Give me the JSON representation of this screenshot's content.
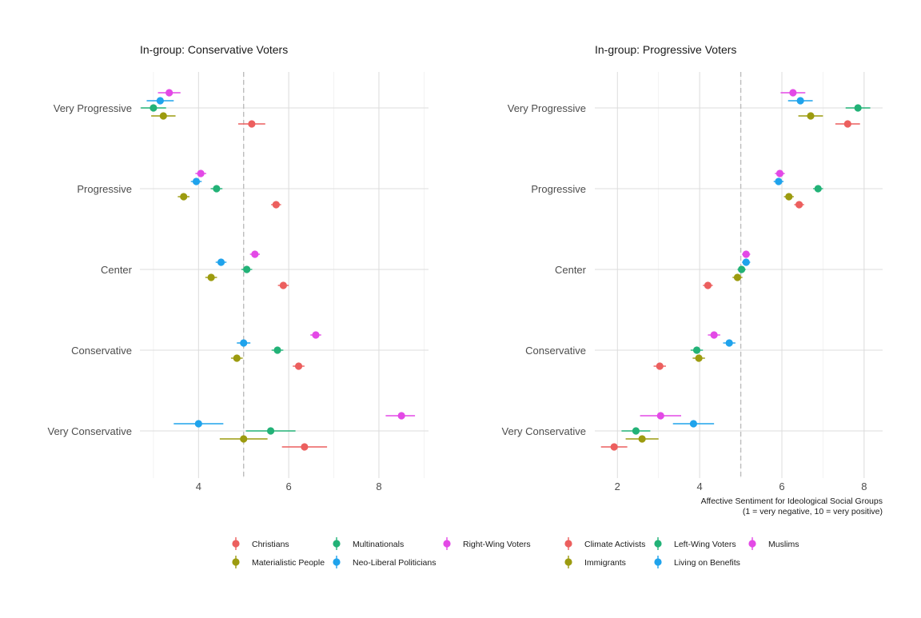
{
  "chart_data": [
    {
      "type": "scatter",
      "subtype": "dot-and-errorbar (point estimates with confidence intervals)",
      "title": "In-group: Conservative Voters",
      "xlabel": "",
      "ylabel": "",
      "xlim": [
        2.7,
        9.1
      ],
      "x_ticks": [
        4,
        6,
        8
      ],
      "reference_line_x": 5,
      "grid": true,
      "categories": [
        "Very Progressive",
        "Progressive",
        "Center",
        "Conservative",
        "Very Conservative"
      ],
      "series": [
        {
          "name": "Right-Wing Voters",
          "color": "#E349E6",
          "values": [
            3.35,
            4.05,
            5.25,
            6.6,
            8.5
          ],
          "ci": [
            [
              3.1,
              3.6
            ],
            [
              3.93,
              4.17
            ],
            [
              5.14,
              5.36
            ],
            [
              6.48,
              6.72
            ],
            [
              8.15,
              8.8
            ]
          ]
        },
        {
          "name": "Neo-Liberal Politicians",
          "color": "#1FA3EC",
          "values": [
            3.15,
            3.95,
            4.5,
            5.0,
            4.0
          ],
          "ci": [
            [
              2.85,
              3.45
            ],
            [
              3.83,
              4.07
            ],
            [
              4.38,
              4.62
            ],
            [
              4.85,
              5.15
            ],
            [
              3.45,
              4.55
            ]
          ]
        },
        {
          "name": "Multinationals",
          "color": "#22B277",
          "values": [
            3.0,
            4.4,
            5.07,
            5.75,
            5.6
          ],
          "ci": [
            [
              2.72,
              3.28
            ],
            [
              4.27,
              4.53
            ],
            [
              4.95,
              5.19
            ],
            [
              5.62,
              5.88
            ],
            [
              5.05,
              6.15
            ]
          ]
        },
        {
          "name": "Materialistic People",
          "color": "#9C9B0F",
          "values": [
            3.22,
            3.67,
            4.28,
            4.85,
            5.0
          ],
          "ci": [
            [
              2.95,
              3.49
            ],
            [
              3.54,
              3.8
            ],
            [
              4.15,
              4.41
            ],
            [
              4.72,
              4.98
            ],
            [
              4.47,
              5.53
            ]
          ]
        },
        {
          "name": "Christians",
          "color": "#EC5F5E",
          "values": [
            5.18,
            5.72,
            5.88,
            6.22,
            6.35
          ],
          "ci": [
            [
              4.88,
              5.48
            ],
            [
              5.61,
              5.83
            ],
            [
              5.76,
              6.0
            ],
            [
              6.09,
              6.35
            ],
            [
              5.85,
              6.85
            ]
          ]
        }
      ]
    },
    {
      "type": "scatter",
      "subtype": "dot-and-errorbar (point estimates with confidence intervals)",
      "title": "In-group: Progressive Voters",
      "xlabel": "Affective Sentiment for Ideological Social Groups",
      "xlabel_line2": "(1 = very negative, 10 = very positive)",
      "ylabel": "",
      "xlim": [
        1.45,
        8.45
      ],
      "x_ticks": [
        2,
        4,
        6,
        8
      ],
      "reference_line_x": 5,
      "grid": true,
      "categories": [
        "Very Progressive",
        "Progressive",
        "Center",
        "Conservative",
        "Very Conservative"
      ],
      "series": [
        {
          "name": "Muslims",
          "color": "#E349E6",
          "values": [
            6.27,
            5.95,
            5.13,
            4.35,
            3.05
          ],
          "ci": [
            [
              5.97,
              6.57
            ],
            [
              5.83,
              6.07
            ],
            [
              5.03,
              5.23
            ],
            [
              4.2,
              4.5
            ],
            [
              2.55,
              3.55
            ]
          ]
        },
        {
          "name": "Living on Benefits",
          "color": "#1FA3EC",
          "values": [
            6.45,
            5.92,
            5.13,
            4.72,
            3.85
          ],
          "ci": [
            [
              6.15,
              6.75
            ],
            [
              5.8,
              6.04
            ],
            [
              5.03,
              5.23
            ],
            [
              4.57,
              4.87
            ],
            [
              3.35,
              4.35
            ]
          ]
        },
        {
          "name": "Left-Wing Voters",
          "color": "#22B277",
          "values": [
            7.85,
            6.88,
            5.02,
            3.93,
            2.45
          ],
          "ci": [
            [
              7.55,
              8.15
            ],
            [
              6.76,
              7.0
            ],
            [
              4.92,
              5.12
            ],
            [
              3.78,
              4.08
            ],
            [
              2.1,
              2.8
            ]
          ]
        },
        {
          "name": "Immigrants",
          "color": "#9C9B0F",
          "values": [
            6.7,
            6.17,
            4.92,
            3.98,
            2.6
          ],
          "ci": [
            [
              6.4,
              7.0
            ],
            [
              6.05,
              6.29
            ],
            [
              4.8,
              5.04
            ],
            [
              3.83,
              4.13
            ],
            [
              2.2,
              3.0
            ]
          ]
        },
        {
          "name": "Climate Activists",
          "color": "#EC5F5E",
          "values": [
            7.6,
            6.42,
            4.2,
            3.03,
            1.92
          ],
          "ci": [
            [
              7.3,
              7.9
            ],
            [
              6.3,
              6.54
            ],
            [
              4.08,
              4.32
            ],
            [
              2.88,
              3.18
            ],
            [
              1.6,
              2.24
            ]
          ]
        }
      ]
    }
  ],
  "legend": [
    {
      "label": "Christians",
      "color": "#EC5F5E"
    },
    {
      "label": "Materialistic People",
      "color": "#9C9B0F"
    },
    {
      "label": "Multinationals",
      "color": "#22B277"
    },
    {
      "label": "Neo-Liberal Politicians",
      "color": "#1FA3EC"
    },
    {
      "label": "Right-Wing Voters",
      "color": "#E349E6"
    },
    {
      "label": "Climate Activists",
      "color": "#EC5F5E"
    },
    {
      "label": "Immigrants",
      "color": "#9C9B0F"
    },
    {
      "label": "Left-Wing Voters",
      "color": "#22B277"
    },
    {
      "label": "Living on Benefits",
      "color": "#1FA3EC"
    },
    {
      "label": "Muslims",
      "color": "#E349E6"
    }
  ]
}
